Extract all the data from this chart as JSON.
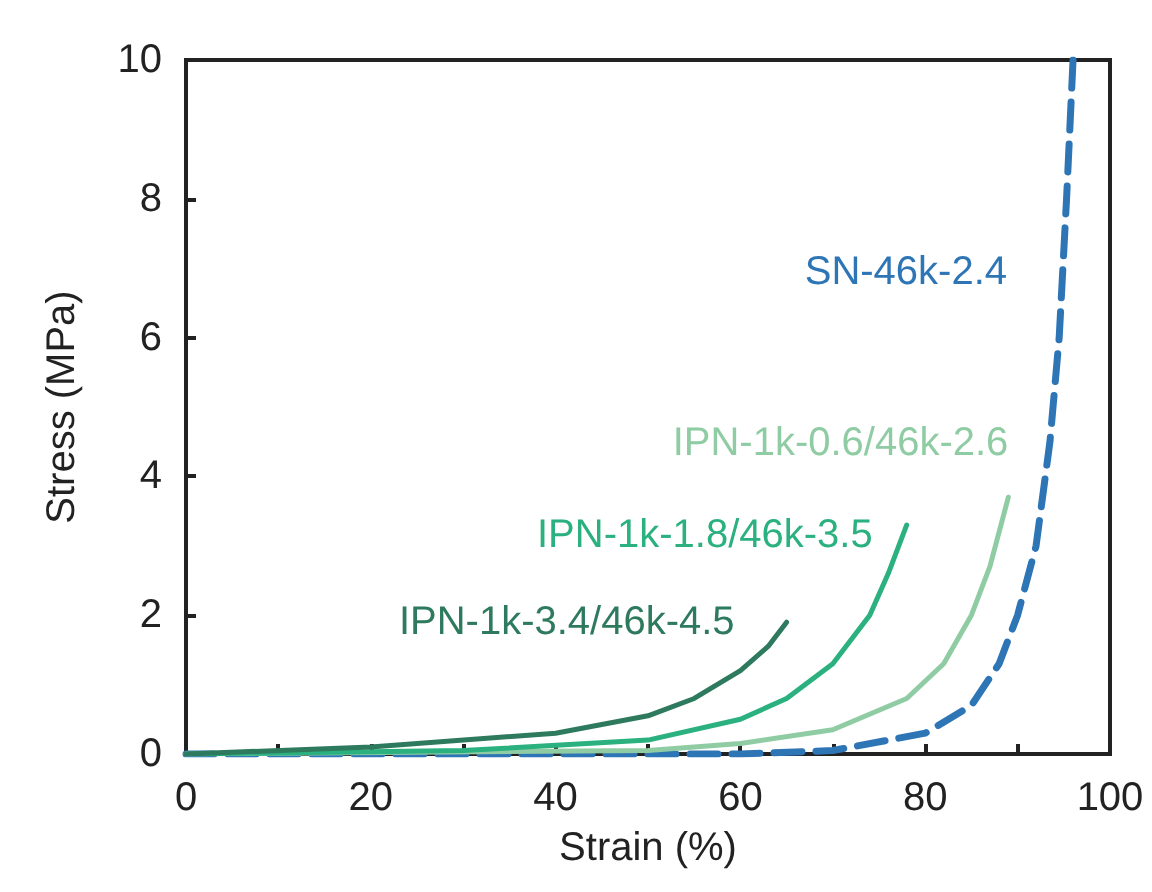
{
  "chart_data": {
    "type": "line",
    "xlabel": "Strain (%)",
    "ylabel": "Stress (MPa)",
    "xlim": [
      0,
      100
    ],
    "xticks": [
      0,
      {
        "value": 10,
        "label": null
      },
      20,
      {
        "value": 30,
        "label": null
      },
      40,
      {
        "value": 50,
        "label": null
      },
      60,
      {
        "value": 70,
        "label": null
      },
      80,
      {
        "value": 90,
        "label": null
      },
      100
    ],
    "ylim": [
      0,
      10
    ],
    "yticks": [
      0,
      2,
      4,
      6,
      8,
      10
    ],
    "grid": false,
    "legend": false,
    "marker": "none",
    "series": [
      {
        "name": "SN-46k-2.4",
        "color": "#2e75b6",
        "line_style": "dashed",
        "x": [
          0,
          60,
          70,
          80,
          85,
          88,
          90,
          92,
          93.5,
          94.5,
          95.3,
          96
        ],
        "values": [
          0,
          0,
          0.05,
          0.3,
          0.7,
          1.3,
          2.0,
          3.0,
          4.5,
          6,
          8,
          10
        ]
      },
      {
        "name": "IPN-1k-0.6/46k-2.6",
        "color": "#8fcca4",
        "line_style": "solid",
        "x": [
          0,
          50,
          60,
          70,
          78,
          82,
          85,
          87,
          89
        ],
        "values": [
          0,
          0.05,
          0.15,
          0.35,
          0.8,
          1.3,
          2.0,
          2.7,
          3.7
        ]
      },
      {
        "name": "IPN-1k-1.8/46k-3.5",
        "color": "#2bb07f",
        "line_style": "solid",
        "x": [
          0,
          30,
          50,
          60,
          65,
          70,
          74,
          76,
          78
        ],
        "values": [
          0,
          0.05,
          0.2,
          0.5,
          0.8,
          1.3,
          2.0,
          2.6,
          3.3
        ]
      },
      {
        "name": "IPN-1k-3.4/46k-4.5",
        "color": "#2e7a5e",
        "line_style": "solid",
        "x": [
          0,
          20,
          40,
          50,
          55,
          60,
          63,
          65
        ],
        "values": [
          0,
          0.1,
          0.3,
          0.55,
          0.8,
          1.2,
          1.55,
          1.9
        ]
      }
    ]
  }
}
